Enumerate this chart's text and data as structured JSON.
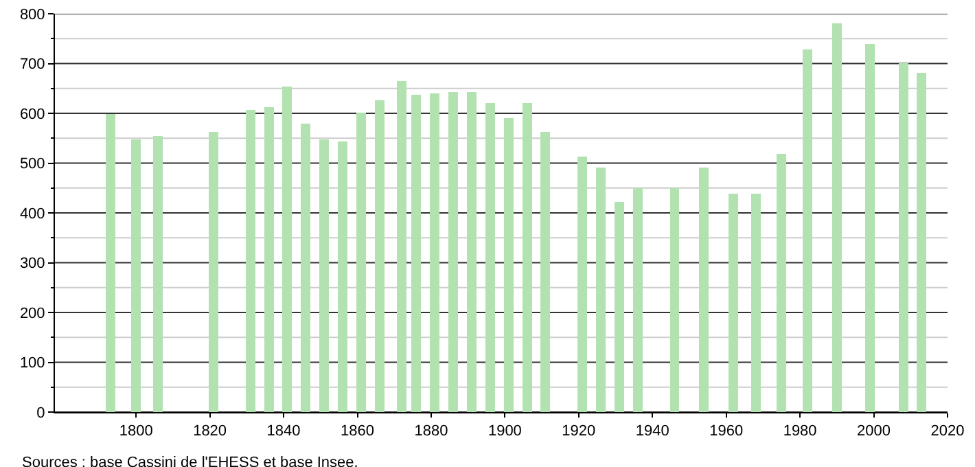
{
  "chart_data": {
    "type": "bar",
    "x": [
      1793,
      1800,
      1806,
      1821,
      1831,
      1836,
      1841,
      1846,
      1851,
      1856,
      1861,
      1866,
      1872,
      1876,
      1881,
      1886,
      1891,
      1896,
      1901,
      1906,
      1911,
      1921,
      1926,
      1931,
      1936,
      1946,
      1954,
      1962,
      1968,
      1975,
      1982,
      1990,
      1999,
      2008,
      2013
    ],
    "values": [
      598,
      547,
      554,
      563,
      607,
      612,
      654,
      579,
      547,
      543,
      601,
      626,
      665,
      637,
      640,
      643,
      643,
      621,
      591,
      621,
      563,
      513,
      491,
      422,
      449,
      449,
      491,
      438,
      438,
      519,
      728,
      781,
      739,
      701,
      681
    ],
    "color": "#b2e2b0",
    "xlim": [
      1778,
      2020
    ],
    "xticks": [
      1800,
      1820,
      1840,
      1860,
      1880,
      1900,
      1920,
      1940,
      1960,
      1980,
      2000,
      2020
    ],
    "ylim": [
      0,
      800
    ],
    "yticks": [
      0,
      {
        "value": 50,
        "label": null
      },
      100,
      {
        "value": 150,
        "label": null
      },
      200,
      {
        "value": 250,
        "label": null
      },
      300,
      {
        "value": 350,
        "label": null
      },
      400,
      {
        "value": 450,
        "label": null
      },
      500,
      {
        "value": 550,
        "label": null
      },
      600,
      {
        "value": 650,
        "label": null
      },
      700,
      {
        "value": 750,
        "label": null
      },
      800
    ],
    "grid": true,
    "annotations": [
      "Sources : base Cassini de l'EHESS et base Insee."
    ]
  }
}
